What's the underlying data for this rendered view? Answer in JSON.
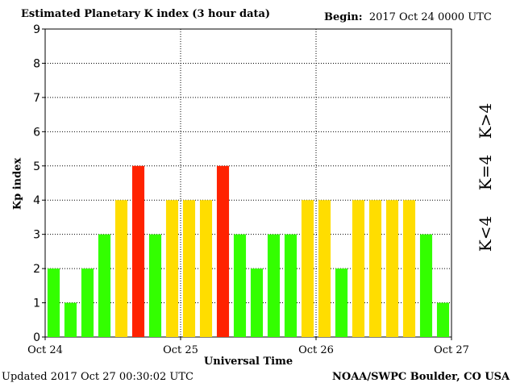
{
  "header": {
    "title": "Estimated Planetary K index (3 hour data)",
    "begin_label": "Begin:",
    "begin_value": "2017 Oct 24 0000 UTC"
  },
  "footer": {
    "updated": "Updated 2017 Oct 27 00:30:02 UTC",
    "credit": "NOAA/SWPC Boulder, CO USA"
  },
  "legend": {
    "high": "K>4",
    "equal": "K=4",
    "low": "K<4"
  },
  "colors": {
    "low": "#33ff00",
    "equal": "#ffdd00",
    "high": "#ff2200"
  },
  "chart_data": {
    "type": "bar",
    "title": "Estimated Planetary K index (3 hour data)",
    "xlabel": "Universal Time",
    "ylabel": "Kp index",
    "ylim": [
      0,
      9
    ],
    "yticks": [
      "0",
      "1",
      "2",
      "3",
      "4",
      "5",
      "6",
      "7",
      "8",
      "9"
    ],
    "xticks": [
      "Oct 24",
      "Oct 25",
      "Oct 26",
      "Oct 27"
    ],
    "grid": true,
    "interval": "3 hour",
    "values": [
      2,
      1,
      2,
      3,
      4,
      5,
      3,
      4,
      4,
      4,
      5,
      3,
      2,
      3,
      3,
      4,
      4,
      2,
      4,
      4,
      4,
      4,
      3,
      1
    ]
  }
}
